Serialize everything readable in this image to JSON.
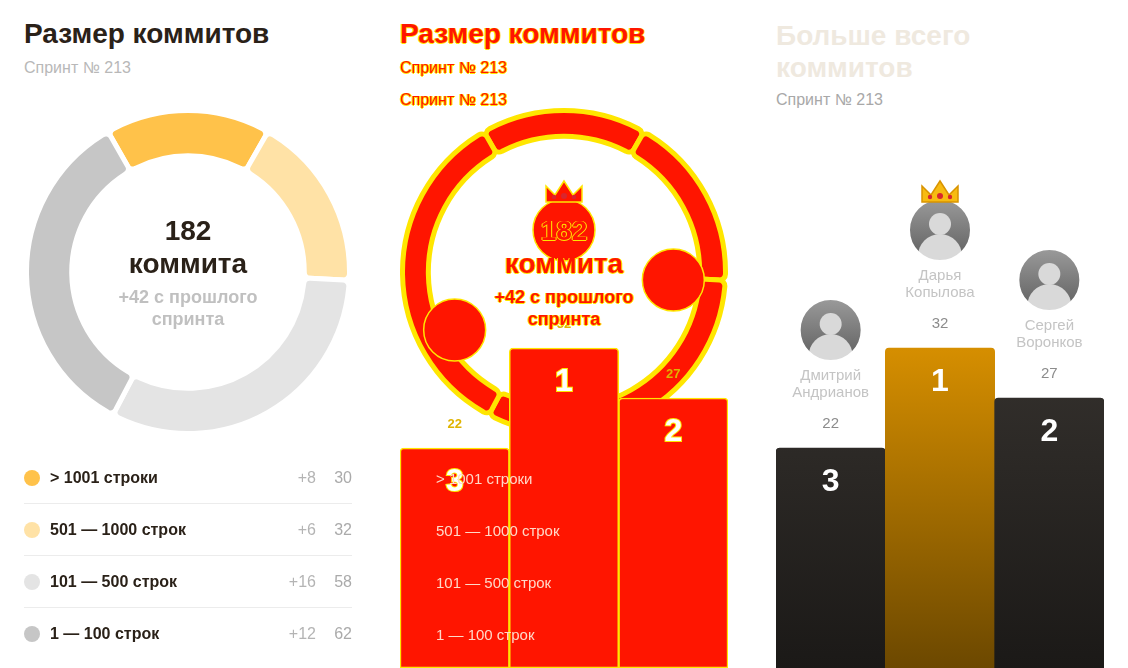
{
  "chart_data": [
    {
      "type": "doughnut",
      "title": "Размер коммитов",
      "subtitle": "Спринт № 213",
      "total": 182,
      "total_label": "коммита",
      "change_text": "+42 с прошлого спринта",
      "categories": [
        "> 1001 строки",
        "501 — 1000 строк",
        "101 — 500 строк",
        "1 — 100 строк"
      ],
      "values": [
        30,
        32,
        58,
        62
      ],
      "changes": [
        "+8",
        "+6",
        "+16",
        "+12"
      ],
      "colors": [
        "#ffc24a",
        "#ffe2a6",
        "#e4e4e4",
        "#c6c6c6"
      ],
      "legend": "bottom"
    },
    {
      "type": "bar",
      "title": "Больше всего коммитов",
      "subtitle": "Спринт № 213",
      "categories": [
        "Дмитрий Андрианов",
        "Дарья Копылова",
        "Сергей Воронков"
      ],
      "values": [
        22,
        32,
        27
      ],
      "ranks": [
        3,
        1,
        2
      ],
      "colors": [
        "#3b3733",
        "#f0a000",
        "#3b3733"
      ],
      "ylim": [
        0,
        40
      ],
      "tick_labels": false,
      "data_labels": true
    }
  ]
}
